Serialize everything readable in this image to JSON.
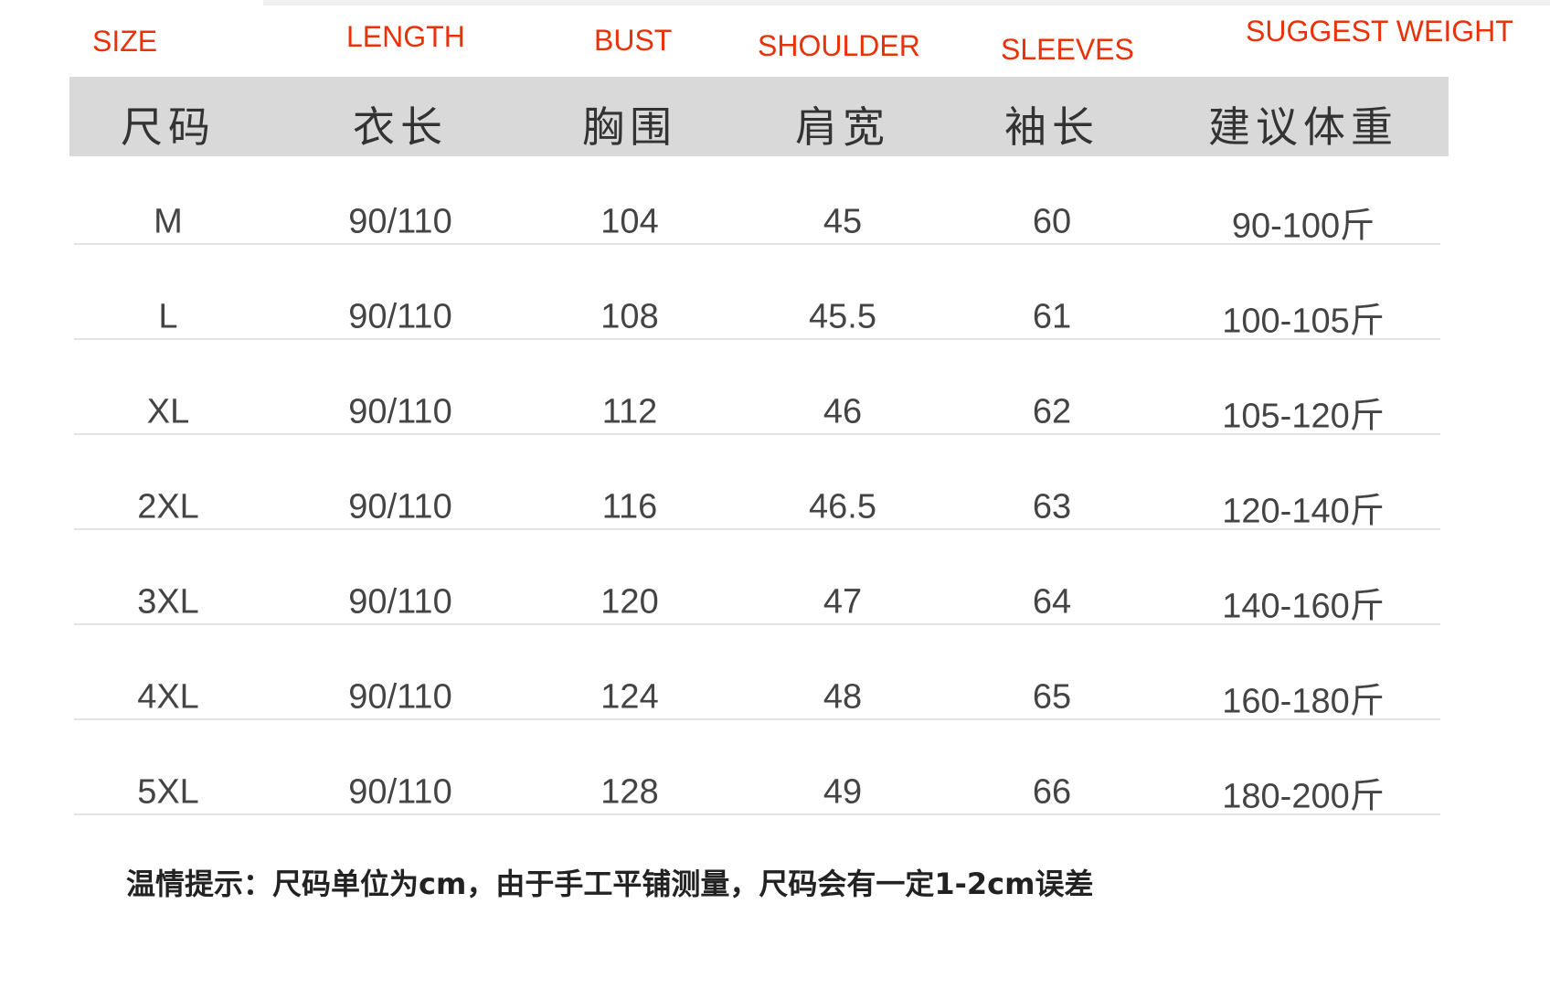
{
  "english_headers": [
    "SIZE",
    "LENGTH",
    "BUST",
    "SHOULDER",
    "SLEEVES",
    "SUGGEST WEIGHT"
  ],
  "table": {
    "header": [
      "尺码",
      "衣长",
      "胸围",
      "肩宽",
      "袖长",
      "建议体重"
    ],
    "rows": [
      [
        "M",
        "90/110",
        "104",
        "45",
        "60",
        "90-100斤"
      ],
      [
        "L",
        "90/110",
        "108",
        "45.5",
        "61",
        "100-105斤"
      ],
      [
        "XL",
        "90/110",
        "112",
        "46",
        "62",
        "105-120斤"
      ],
      [
        "2XL",
        "90/110",
        "116",
        "46.5",
        "63",
        "120-140斤"
      ],
      [
        "3XL",
        "90/110",
        "120",
        "47",
        "64",
        "140-160斤"
      ],
      [
        "4XL",
        "90/110",
        "124",
        "48",
        "65",
        "160-180斤"
      ],
      [
        "5XL",
        "90/110",
        "128",
        "49",
        "66",
        "180-200斤"
      ]
    ]
  },
  "note": "温情提示：尺码单位为cm，由于手工平铺测量，尺码会有一定1-2cm误差"
}
